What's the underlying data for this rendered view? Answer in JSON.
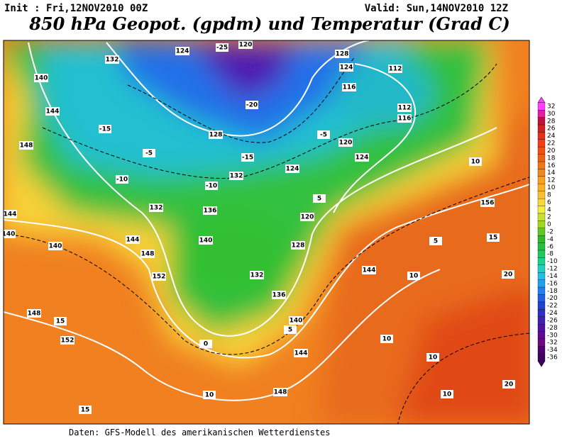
{
  "header": {
    "init": "Init : Fri,12NOV2010 00Z",
    "valid": "Valid: Sun,14NOV2010 12Z",
    "title": "850 hPa Geopot. (gpdm) und Temperatur (Grad C)"
  },
  "footer": "Daten: GFS-Modell des amerikanischen Wetterdienstes",
  "colorbar": {
    "ticks": [
      32,
      30,
      28,
      26,
      24,
      22,
      20,
      18,
      16,
      14,
      12,
      10,
      8,
      6,
      4,
      2,
      0,
      -2,
      -4,
      -6,
      -8,
      -10,
      -12,
      -14,
      -16,
      -18,
      -20,
      -22,
      -24,
      -26,
      -28,
      -30,
      -32,
      -34,
      -36
    ],
    "colors": [
      "#ff40ff",
      "#e020a0",
      "#c01040",
      "#d02020",
      "#e83018",
      "#f04010",
      "#f05010",
      "#f06010",
      "#f07818",
      "#f08820",
      "#f8a020",
      "#f8b028",
      "#f8c030",
      "#f8d838",
      "#f0f040",
      "#c8e030",
      "#a0d820",
      "#60c820",
      "#30b828",
      "#20c040",
      "#20c860",
      "#20d090",
      "#20d0c0",
      "#20c0e0",
      "#20a0f0",
      "#2080f0",
      "#2060e0",
      "#2040d0",
      "#3030c0",
      "#4020b0",
      "#5010a0",
      "#600890",
      "#700880",
      "#500070",
      "#400060"
    ]
  },
  "geopotential_labels": [
    140,
    144,
    148,
    144,
    140,
    140,
    144,
    148,
    152,
    148,
    152,
    132,
    124,
    120,
    128,
    124,
    112,
    116,
    112,
    116,
    120,
    124,
    124,
    132,
    136,
    140,
    132,
    136,
    140,
    144,
    148,
    128,
    132,
    156,
    120,
    128,
    144
  ],
  "temperature_labels": [
    -25,
    -20,
    -15,
    -10,
    -5,
    0,
    5,
    10,
    15,
    15,
    10,
    15,
    20,
    20,
    10,
    10,
    10,
    5,
    -5,
    -10,
    -15,
    10,
    5
  ]
}
